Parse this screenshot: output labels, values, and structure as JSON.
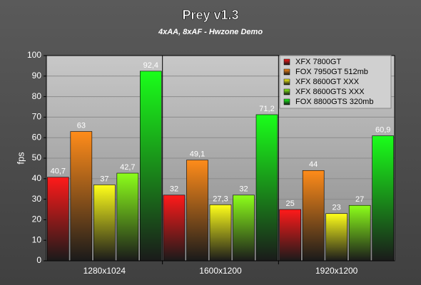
{
  "chart_data": {
    "type": "bar",
    "title": "Prey v1.3",
    "subtitle": "4xAA, 8xAF - Hwzone Demo",
    "y_label": "fps",
    "categories": [
      "1280x1024",
      "1600x1200",
      "1920x1200"
    ],
    "series": [
      {
        "name": "XFX 7800GT",
        "color": "#ff1a1a",
        "values": [
          40.7,
          32,
          25
        ],
        "value_labels": [
          "40,7",
          "32",
          "25"
        ]
      },
      {
        "name": "FOX 7950GT 512mb",
        "color": "#ff8c1a",
        "values": [
          63,
          49.1,
          44
        ],
        "value_labels": [
          "63",
          "49,1",
          "44"
        ]
      },
      {
        "name": "XFX 8600GT XXX",
        "color": "#ffff1a",
        "values": [
          37,
          27.3,
          23
        ],
        "value_labels": [
          "37",
          "27,3",
          "23"
        ]
      },
      {
        "name": "XFX 8600GTS XXX",
        "color": "#8cff1a",
        "values": [
          42.7,
          32,
          27
        ],
        "value_labels": [
          "42,7",
          "32",
          "27"
        ]
      },
      {
        "name": "FOX 8800GTS 320mb",
        "color": "#1aff1a",
        "values": [
          92.4,
          71.2,
          60.9
        ],
        "value_labels": [
          "92,4",
          "71,2",
          "60,9"
        ]
      }
    ],
    "ylim": [
      0,
      100
    ],
    "yticks": [
      0,
      10,
      20,
      30,
      40,
      50,
      60,
      70,
      80,
      90,
      100
    ],
    "grid": true,
    "legend": "top-right"
  }
}
